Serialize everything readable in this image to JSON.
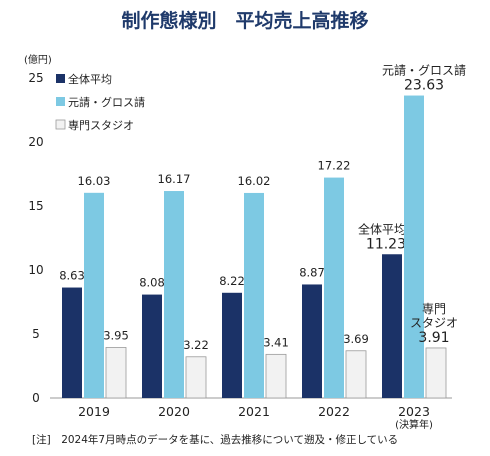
{
  "chart_data": {
    "type": "bar",
    "title": "制作態様別　平均売上高推移",
    "unit_label": "(億円)",
    "categories": [
      "2019",
      "2020",
      "2021",
      "2022",
      "2023"
    ],
    "category_sublabels": [
      "",
      "",
      "",
      "",
      "(決算年)"
    ],
    "ylim": [
      0,
      25
    ],
    "yticks": [
      0,
      5,
      10,
      15,
      20,
      25
    ],
    "series": [
      {
        "name": "全体平均",
        "color": "#1b3267",
        "values": [
          8.63,
          8.08,
          8.22,
          8.87,
          11.23
        ]
      },
      {
        "name": "元請・グロス請",
        "color": "#7dc9e3",
        "values": [
          16.03,
          16.17,
          16.02,
          17.22,
          23.63
        ]
      },
      {
        "name": "専門スタジオ",
        "color": "#f2f2f2",
        "values": [
          3.95,
          3.22,
          3.41,
          3.69,
          3.91
        ]
      }
    ],
    "legend_position": "top-left",
    "grid": false,
    "annotations": [
      {
        "series": "全体平均",
        "year": "2023",
        "lines": [
          "全体平均"
        ],
        "value": "11.23"
      },
      {
        "series": "元請・グロス請",
        "year": "2023",
        "lines": [
          "元請・グロス請"
        ],
        "value": "23.63"
      },
      {
        "series": "専門スタジオ",
        "year": "2023",
        "lines": [
          "専門",
          "スタジオ"
        ],
        "value": "3.91"
      }
    ],
    "note": "[注]　2024年7月時点のデータを基に、過去推移について遡及・修正している"
  }
}
